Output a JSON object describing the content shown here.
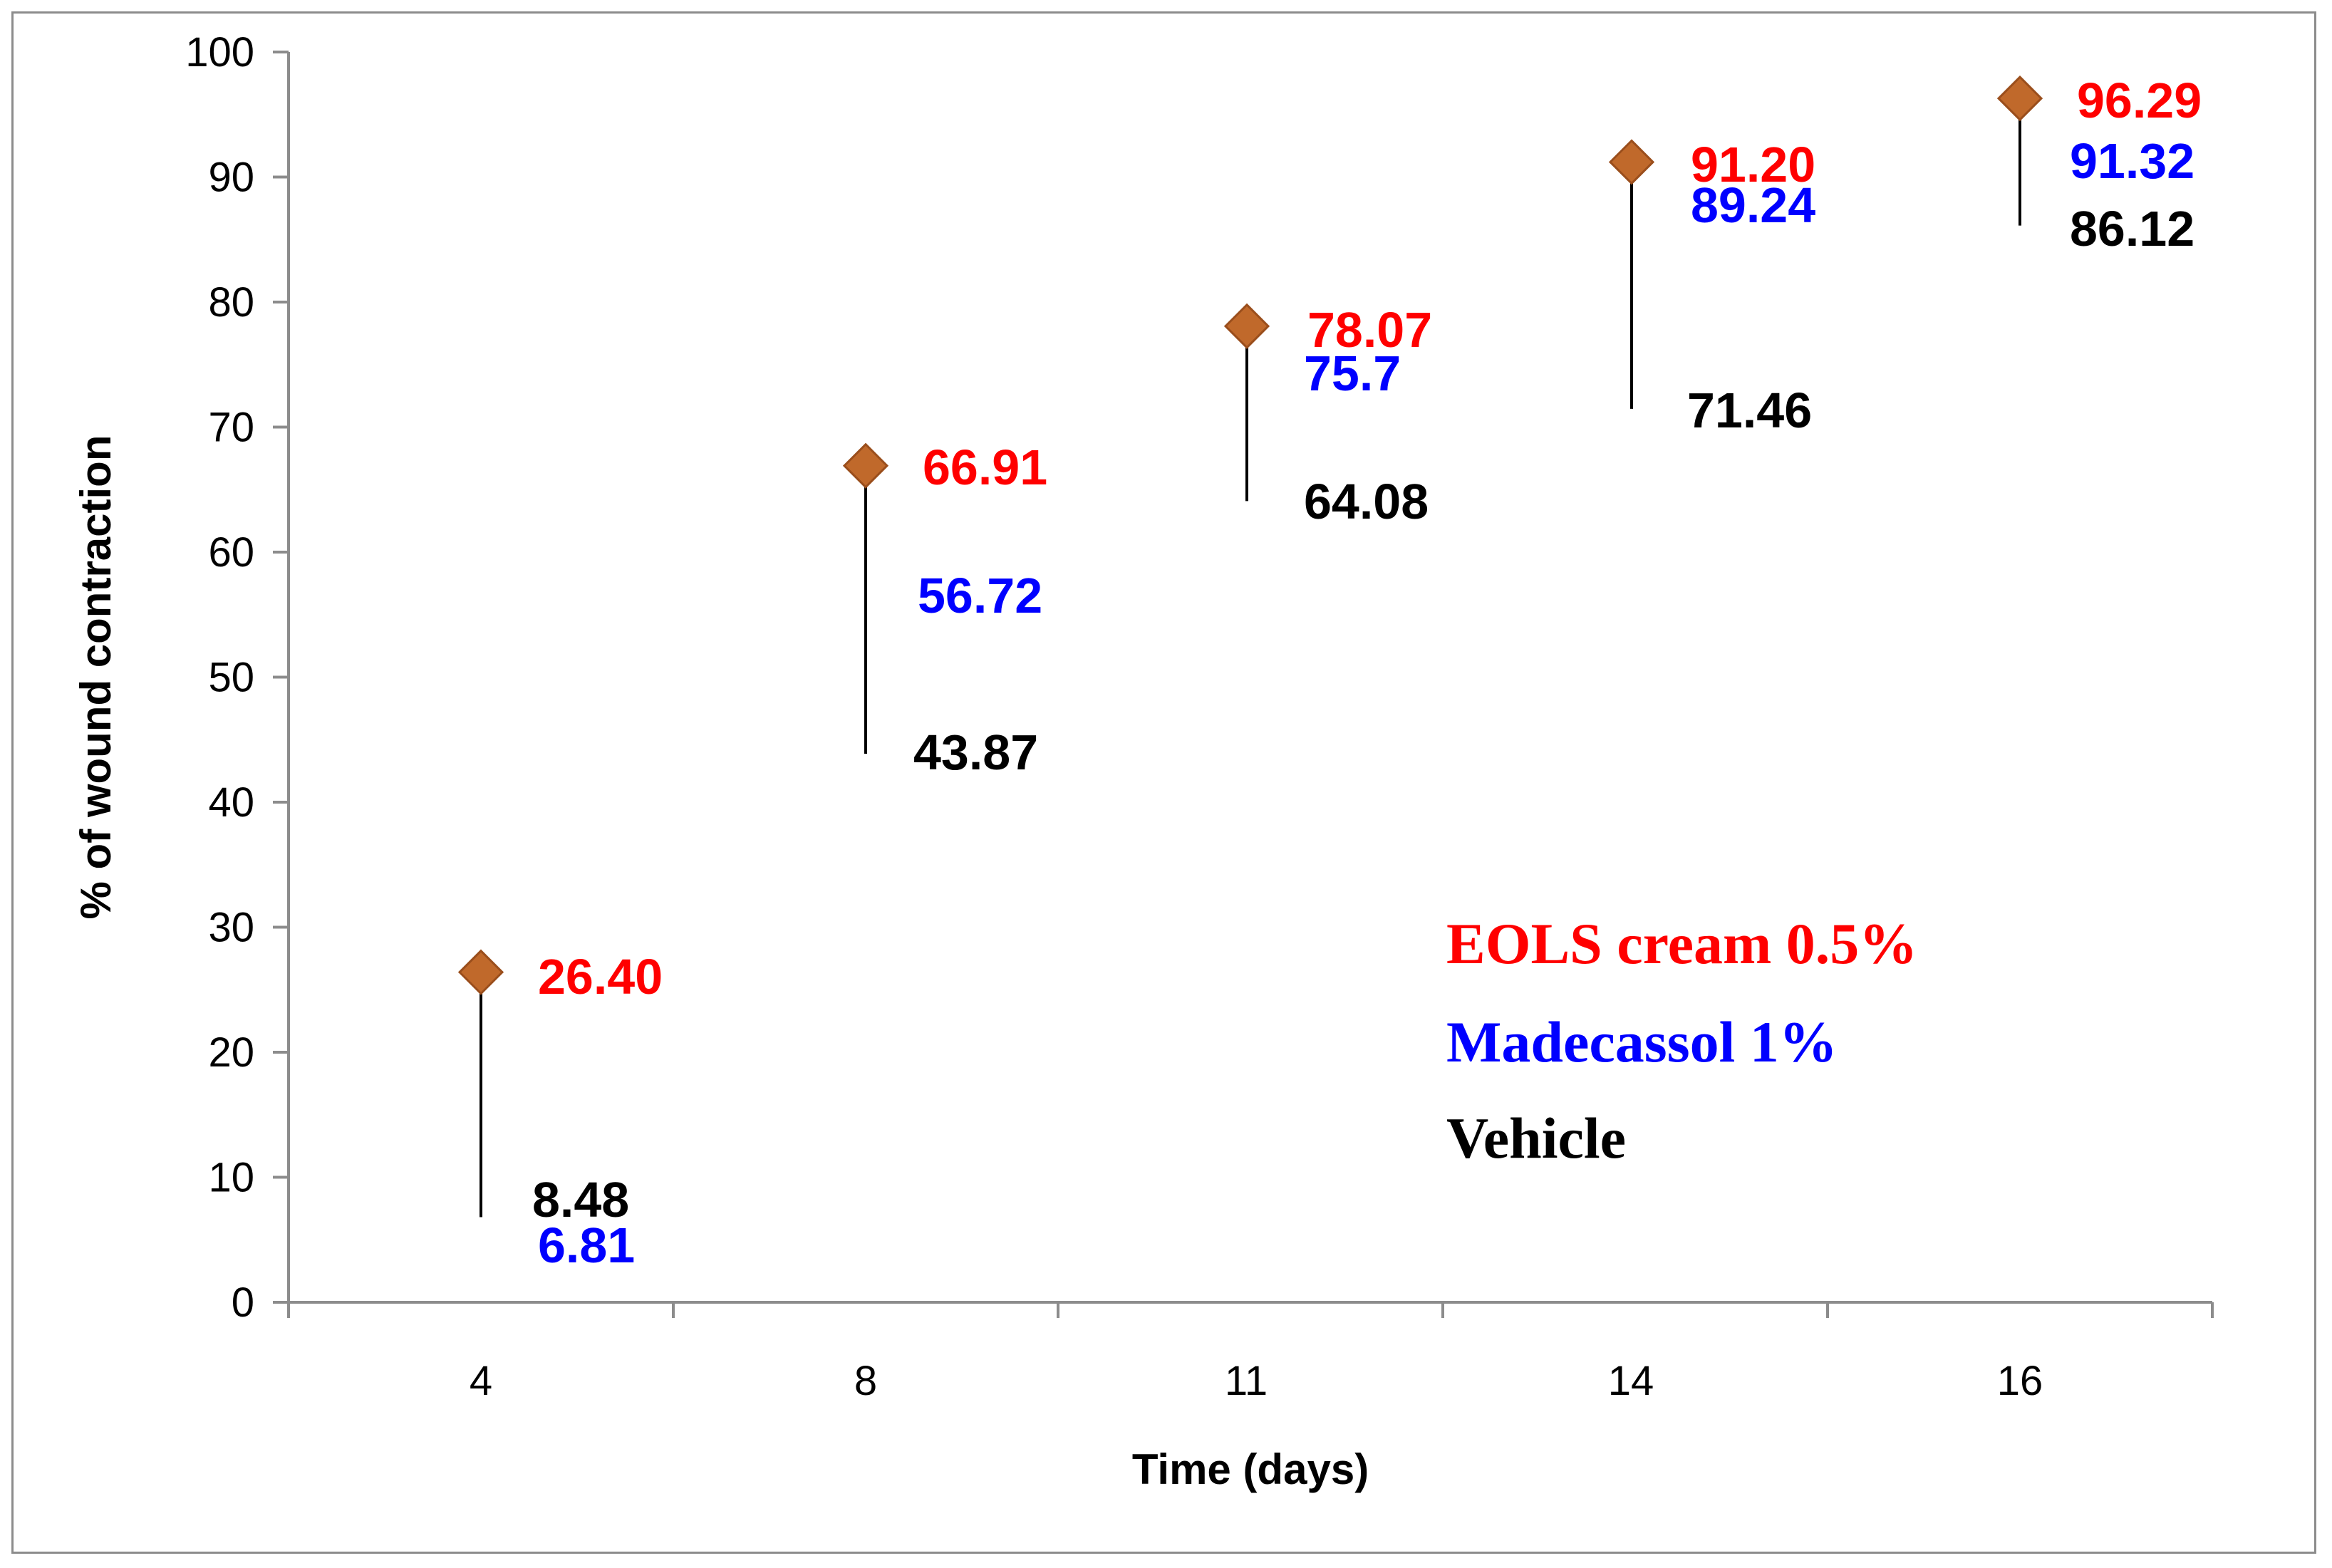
{
  "chart_data": {
    "type": "scatter",
    "title": "",
    "xlabel": "Time (days)",
    "ylabel": "% of wound contraction",
    "ylim": [
      0,
      100
    ],
    "yticks": [
      0,
      10,
      20,
      30,
      40,
      50,
      60,
      70,
      80,
      90,
      100
    ],
    "categories": [
      "4",
      "8",
      "11",
      "14",
      "16"
    ],
    "grid": false,
    "legend_position": "bottom-right",
    "marker": "diamond",
    "marker_color": "#c0692b",
    "series": [
      {
        "name": "EOLS cream 0.5%",
        "color": "#ff0000",
        "values": [
          26.4,
          66.91,
          78.07,
          91.2,
          96.29
        ],
        "labels": [
          "26.40",
          "66.91",
          "78.07",
          "91.20",
          "96.29"
        ]
      },
      {
        "name": "Madecassol 1%",
        "color": "#0000ff",
        "values": [
          6.81,
          56.72,
          75.7,
          89.24,
          91.32
        ],
        "labels": [
          "6.81",
          "56.72",
          "75.7",
          "89.24",
          "91.32"
        ]
      },
      {
        "name": "Vehicle",
        "color": "#000000",
        "values": [
          8.48,
          43.87,
          64.08,
          71.46,
          86.12
        ],
        "labels": [
          "8.48",
          "43.87",
          "64.08",
          "71.46",
          "86.12"
        ]
      }
    ]
  }
}
